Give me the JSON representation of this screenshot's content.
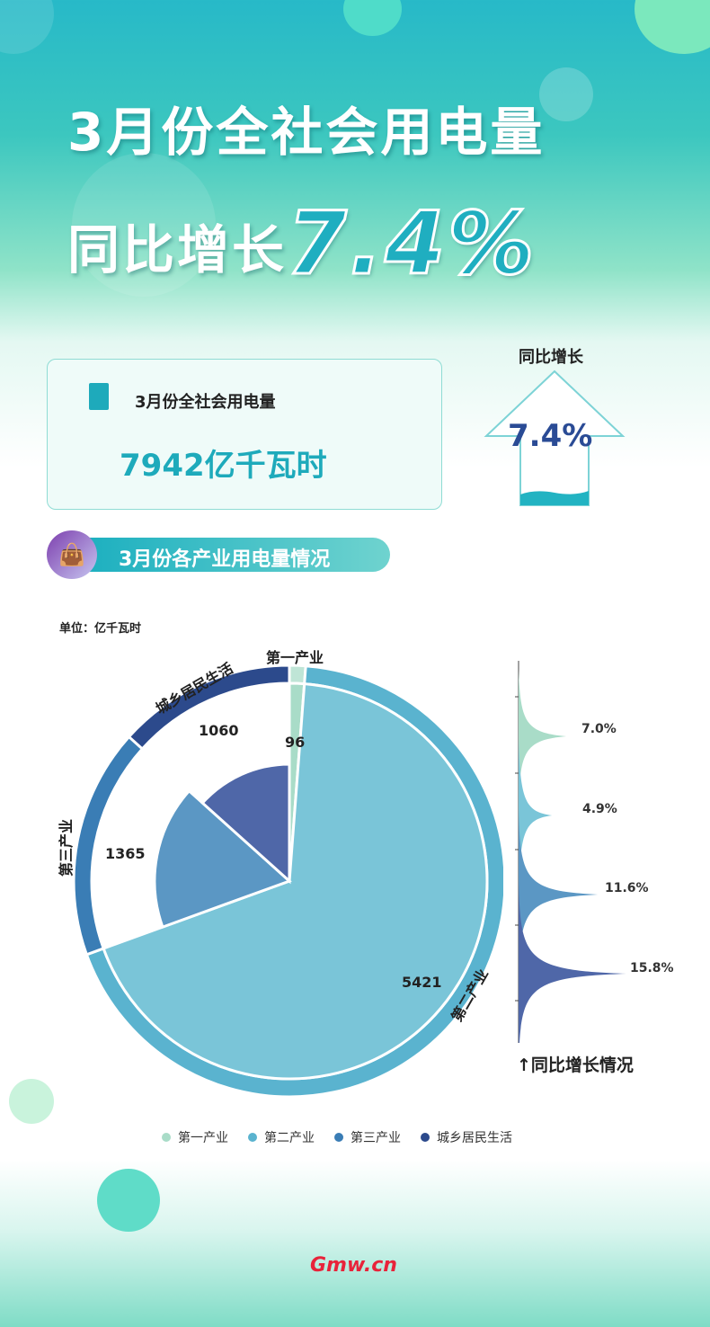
{
  "header": {
    "title_line1": "3月份全社会用电量",
    "title_line2_prefix": "同比增长",
    "title_line2_value": "7.4%"
  },
  "summary_card": {
    "icon": "calculator-icon",
    "label": "3月份全社会用电量",
    "value": "7942亿千瓦时"
  },
  "growth_arrow": {
    "label": "同比增长",
    "value": "7.4%"
  },
  "section": {
    "icon": "shopping-bag-icon",
    "title": "3月份各产业用电量情况"
  },
  "colors": {
    "primary": "#1eaabb",
    "first": "#a9dcc8",
    "second": "#5ab3cf",
    "third": "#3a7db5",
    "residential": "#2c4a8c"
  },
  "chart_data": [
    {
      "type": "pie",
      "unit": "单位：亿千瓦时",
      "categories": [
        "第一产业",
        "第二产业",
        "第三产业",
        "城乡居民生活"
      ],
      "values": [
        96,
        5421,
        1365,
        1060
      ],
      "legend": "bottom"
    },
    {
      "type": "area",
      "title": "↑同比增长情况",
      "categories": [
        "第一产业",
        "第二产业",
        "第三产业",
        "城乡居民生活"
      ],
      "values": [
        7.0,
        4.9,
        11.6,
        15.8
      ],
      "labels": [
        "7.0%",
        "4.9%",
        "11.6%",
        "15.8%"
      ]
    }
  ],
  "logo": "Gmw.cn"
}
